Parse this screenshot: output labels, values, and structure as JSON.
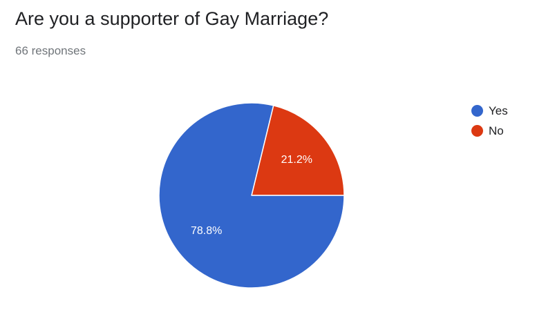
{
  "header": {
    "title": "Are you a supporter of Gay Marriage?",
    "responses": "66 responses"
  },
  "chart_data": {
    "type": "pie",
    "title": "Are you a supporter of Gay Marriage?",
    "subtitle": "66 responses",
    "slices": [
      {
        "label": "Yes",
        "value": 78.8,
        "display": "78.8%",
        "color": "#3366cc"
      },
      {
        "label": "No",
        "value": 21.2,
        "display": "21.2%",
        "color": "#dc3912"
      }
    ],
    "legend_position": "right"
  }
}
